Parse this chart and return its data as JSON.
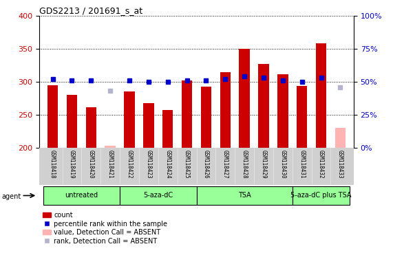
{
  "title": "GDS2213 / 201691_s_at",
  "samples": [
    "GSM118418",
    "GSM118419",
    "GSM118420",
    "GSM118421",
    "GSM118422",
    "GSM118423",
    "GSM118424",
    "GSM118425",
    "GSM118426",
    "GSM118427",
    "GSM118428",
    "GSM118429",
    "GSM118430",
    "GSM118431",
    "GSM118432",
    "GSM118433"
  ],
  "count_values": [
    295,
    280,
    262,
    203,
    285,
    268,
    257,
    302,
    293,
    315,
    350,
    327,
    312,
    294,
    358,
    230
  ],
  "absent_flags": [
    false,
    false,
    false,
    true,
    false,
    false,
    false,
    false,
    false,
    false,
    false,
    false,
    false,
    false,
    false,
    true
  ],
  "percentile_values": [
    52,
    51,
    51,
    43,
    51,
    50,
    50,
    51,
    51,
    52,
    54,
    53,
    51,
    50,
    53,
    46
  ],
  "percentile_absent_flags": [
    false,
    false,
    false,
    true,
    false,
    false,
    false,
    false,
    false,
    false,
    false,
    false,
    false,
    false,
    false,
    true
  ],
  "groups": [
    {
      "label": "untreated",
      "start": 0,
      "end": 3
    },
    {
      "label": "5-aza-dC",
      "start": 4,
      "end": 7
    },
    {
      "label": "TSA",
      "start": 8,
      "end": 12
    },
    {
      "label": "5-aza-dC plus TSA",
      "start": 13,
      "end": 15
    }
  ],
  "ylim_left": [
    200,
    400
  ],
  "ylim_right": [
    0,
    100
  ],
  "bar_color": "#cc0000",
  "bar_absent_color": "#ffb3b3",
  "marker_color": "#0000cc",
  "marker_absent_color": "#b3b3cc",
  "group_color": "#99ff99",
  "background_color": "#ffffff",
  "plot_bg_color": "#ffffff",
  "grid_color": "#000000",
  "axis_label_color_left": "#cc0000",
  "axis_label_color_right": "#0000cc"
}
